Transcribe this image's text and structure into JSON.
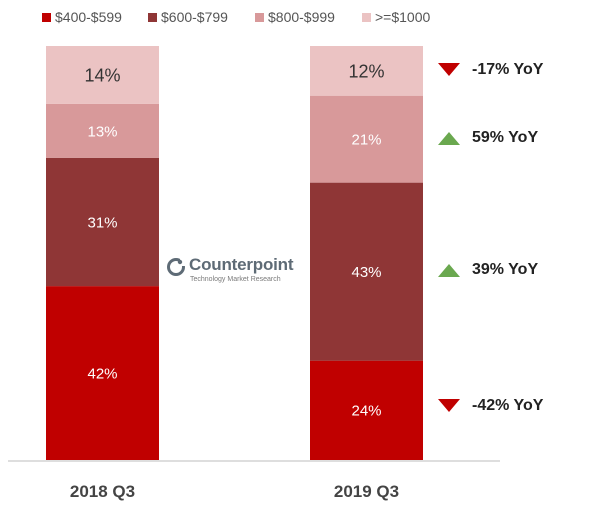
{
  "legend": [
    {
      "label": "$400-$599",
      "color": "#c00000"
    },
    {
      "label": "$600-$799",
      "color": "#8f3636"
    },
    {
      "label": "$800-$999",
      "color": "#d8999a"
    },
    {
      "label": ">=$1000",
      "color": "#ebc3c3"
    }
  ],
  "watermark": {
    "name": "Counterpoint",
    "tagline": "Technology Market Research"
  },
  "yoy": [
    {
      "label": "-17% YoY",
      "direction": "down",
      "color": "#c00000"
    },
    {
      "label": "59% YoY",
      "direction": "up",
      "color": "#6aa84f"
    },
    {
      "label": "39% YoY",
      "direction": "up",
      "color": "#6aa84f"
    },
    {
      "label": "-42% YoY",
      "direction": "down",
      "color": "#c00000"
    }
  ],
  "chart_data": {
    "type": "bar",
    "stacked": true,
    "categories": [
      "2018 Q3",
      "2019 Q3"
    ],
    "ylim": [
      0,
      100
    ],
    "series": [
      {
        "name": "$400-$599",
        "values": [
          42,
          24
        ],
        "labels": [
          "42%",
          "24%"
        ],
        "color": "#c00000"
      },
      {
        "name": "$600-$799",
        "values": [
          31,
          43
        ],
        "labels": [
          "31%",
          "43%"
        ],
        "color": "#8f3636"
      },
      {
        "name": "$800-$999",
        "values": [
          13,
          21
        ],
        "labels": [
          "13%",
          "21%"
        ],
        "color": "#d8999a"
      },
      {
        "name": ">=$1000",
        "values": [
          14,
          12
        ],
        "labels": [
          "14%",
          "12%"
        ],
        "color": "#ebc3c3"
      }
    ]
  }
}
